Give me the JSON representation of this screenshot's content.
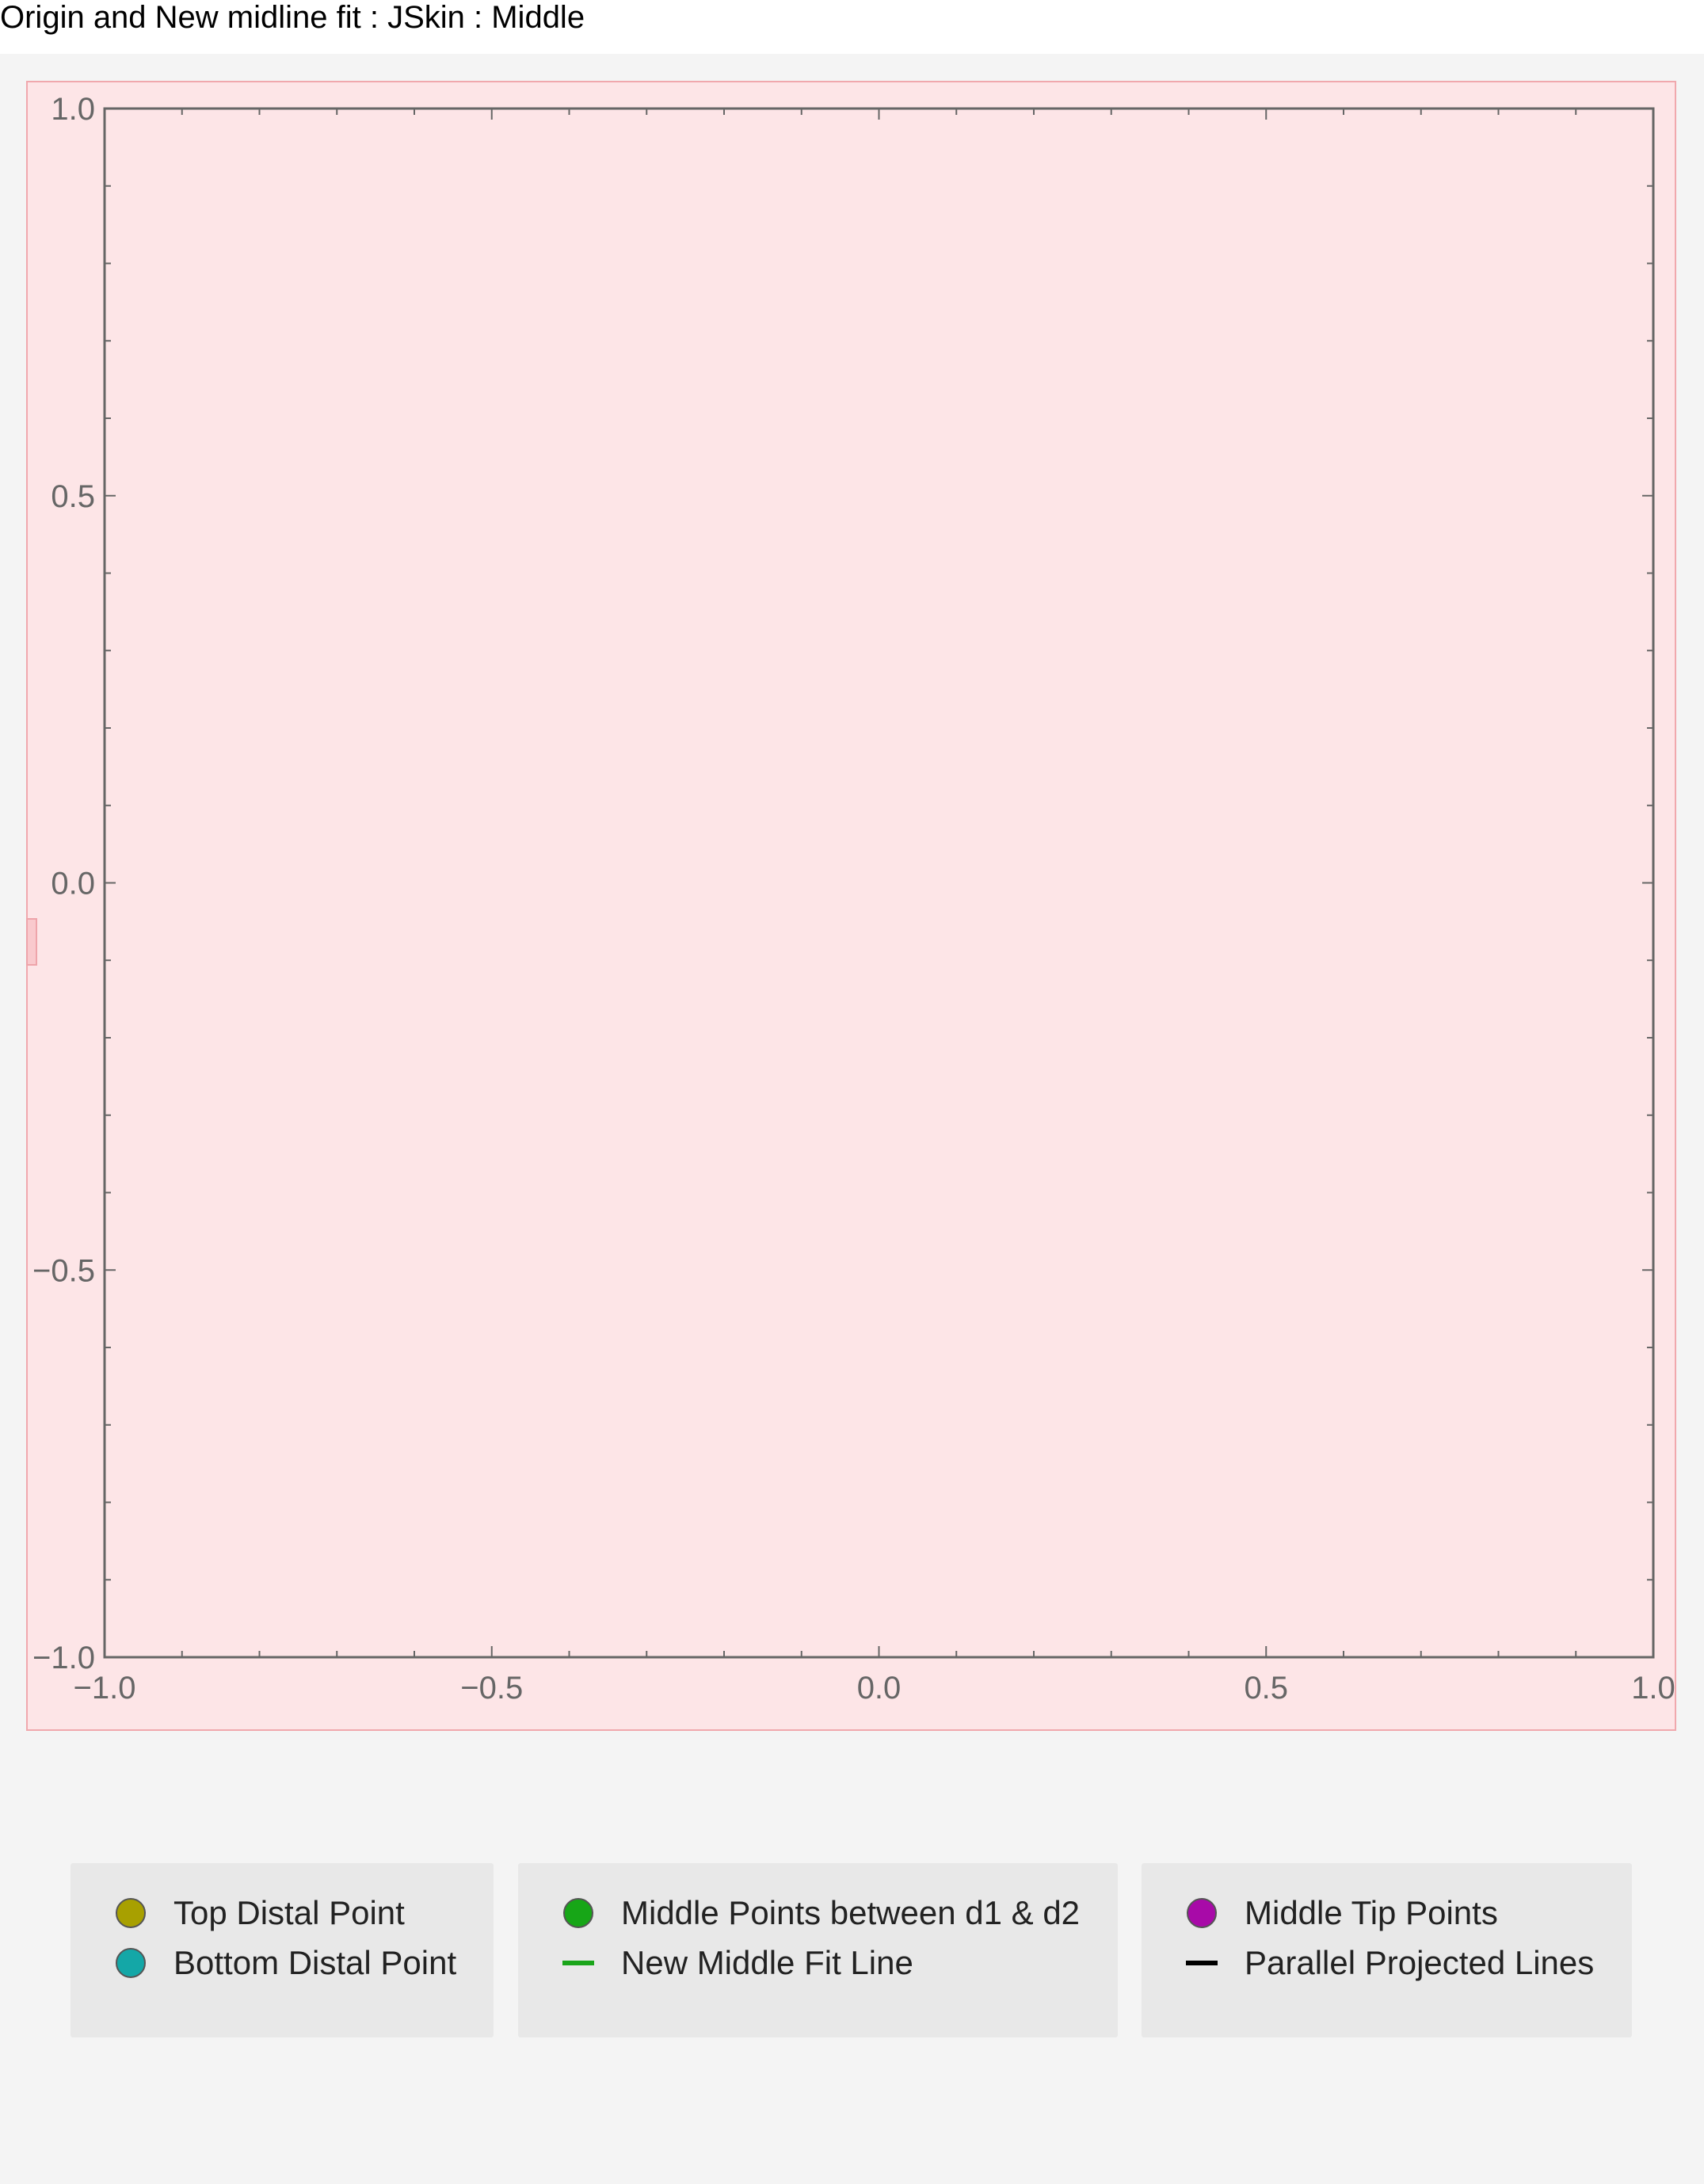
{
  "title": "Origin and New midline fit : JSkin : Middle",
  "colors": {
    "panel_background": "#f4f4f4",
    "plot_background": "#fde5e7",
    "plot_border": "#f0a8ad",
    "axes": "#666666"
  },
  "chart_data": {
    "type": "scatter",
    "title": "Origin and New midline fit : JSkin : Middle",
    "xlabel": "",
    "ylabel": "",
    "xlim": [
      -1.0,
      1.0
    ],
    "ylim": [
      -1.0,
      1.0
    ],
    "x_ticks": [
      -1.0,
      -0.5,
      0.0,
      0.5,
      1.0
    ],
    "x_tick_labels": [
      "−1.0",
      "−0.5",
      "0.0",
      "0.5",
      "1.0"
    ],
    "y_ticks": [
      1.0,
      0.5,
      0.0,
      -0.5,
      -1.0
    ],
    "y_tick_labels": [
      "1.0",
      "0.5",
      "0.0",
      "−0.5",
      "−1.0"
    ],
    "grid": false,
    "frame": true,
    "legend_position": "bottom",
    "series": [
      {
        "name": "Top Distal Point",
        "kind": "point",
        "color": "#a8a000",
        "points": []
      },
      {
        "name": "Bottom Distal Point",
        "kind": "point",
        "color": "#14a7a7",
        "points": []
      },
      {
        "name": "Middle Points between d1 & d2",
        "kind": "point",
        "color": "#17a617",
        "points": []
      },
      {
        "name": "New Middle Fit Line",
        "kind": "line",
        "color": "#1aa51a",
        "points": []
      },
      {
        "name": "Middle Tip Points",
        "kind": "point",
        "color": "#a80aa8",
        "points": []
      },
      {
        "name": "Parallel Projected Lines",
        "kind": "line",
        "color": "#000000",
        "points": []
      }
    ]
  },
  "legend": {
    "groups": [
      {
        "entries": [
          {
            "label": "Top Distal Point",
            "kind": "point",
            "color": "#a8a000"
          },
          {
            "label": "Bottom Distal Point",
            "kind": "point",
            "color": "#14a7a7"
          }
        ]
      },
      {
        "entries": [
          {
            "label": "Middle Points between d1 & d2",
            "kind": "point",
            "color": "#17a617"
          },
          {
            "label": "New Middle Fit Line",
            "kind": "line",
            "color": "#1aa51a"
          }
        ]
      },
      {
        "entries": [
          {
            "label": "Middle Tip Points",
            "kind": "point",
            "color": "#a80aa8"
          },
          {
            "label": "Parallel Projected Lines",
            "kind": "line",
            "color": "#000000"
          }
        ]
      }
    ]
  }
}
